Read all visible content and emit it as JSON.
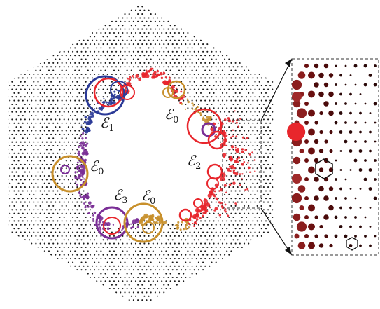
{
  "colors": {
    "lattice_dot": "#1a1a1a",
    "blue": "#2b3a97",
    "red": "#e8262c",
    "purple": "#7a2e96",
    "orange": "#c8902c",
    "dark_red": "#4a0a0a",
    "inset_border": "#333333"
  },
  "labels": [
    {
      "name": "edge-label-e1",
      "letter": "ℰ",
      "sub": "1"
    },
    {
      "name": "edge-label-e0-top",
      "letter": "ℰ",
      "sub": "0"
    },
    {
      "name": "edge-label-e0-left",
      "letter": "ℰ",
      "sub": "0"
    },
    {
      "name": "edge-label-e2",
      "letter": "ℰ",
      "sub": "2"
    },
    {
      "name": "edge-label-e3",
      "letter": "ℰ",
      "sub": "3"
    },
    {
      "name": "edge-label-e0-bottom",
      "letter": "ℰ",
      "sub": "0"
    }
  ]
}
